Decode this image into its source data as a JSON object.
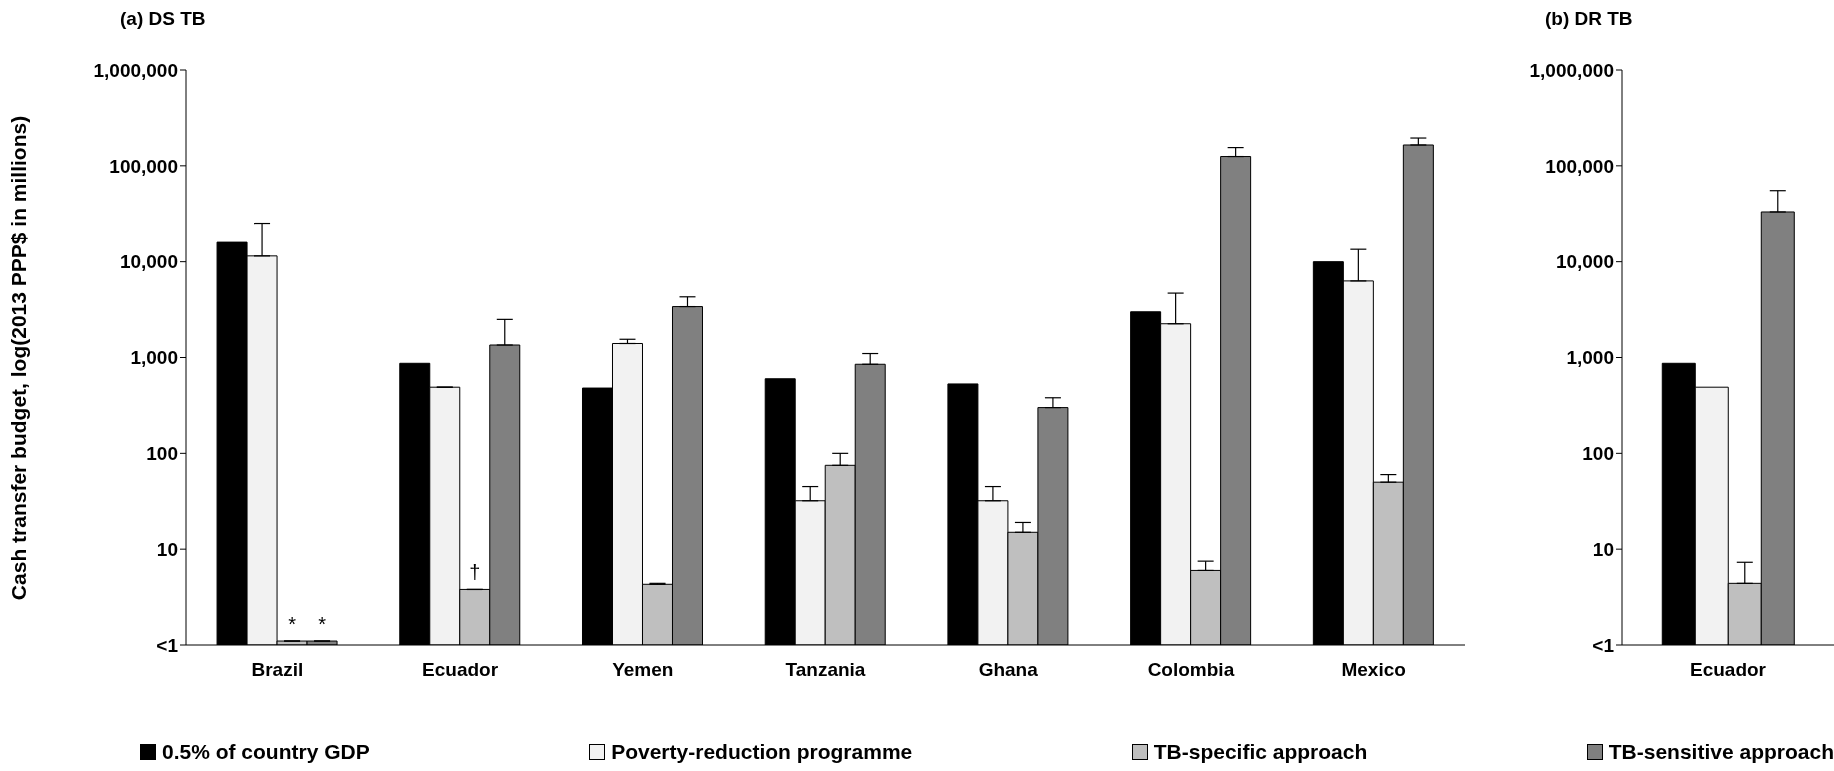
{
  "chart_data": [
    {
      "type": "bar",
      "title": "(a) DS TB",
      "ylabel": "Cash transfer budget, log(2013 PPP$ in millions)",
      "categories": [
        "Brazil",
        "Ecuador",
        "Yemen",
        "Tanzania",
        "Ghana",
        "Colombia",
        "Mexico"
      ],
      "log": "y",
      "ylim": [
        1,
        1000000
      ],
      "yticks": [
        {
          "value": 1,
          "label": "<1"
        },
        {
          "value": 10,
          "label": "10"
        },
        {
          "value": 100,
          "label": "100"
        },
        {
          "value": 1000,
          "label": "1,000"
        },
        {
          "value": 10000,
          "label": "10,000"
        },
        {
          "value": 100000,
          "label": "100,000"
        },
        {
          "value": 1000000,
          "label": "1,000,000"
        }
      ],
      "grid": false,
      "legend": "bottom",
      "series": [
        {
          "name": "0.5% of country GDP",
          "color": "#000000",
          "values": [
            16000,
            870,
            480,
            600,
            530,
            3000,
            10000
          ]
        },
        {
          "name": "Poverty-reduction programme",
          "color": "#f2f2f2",
          "values": [
            11500,
            490,
            1400,
            32,
            32,
            2250,
            6300
          ],
          "errors": [
            [
              11500,
              25000
            ],
            null,
            [
              1400,
              1550
            ],
            [
              32,
              45
            ],
            [
              32,
              45
            ],
            [
              2250,
              4700
            ],
            [
              6300,
              13500
            ]
          ]
        },
        {
          "name": "TB-specific approach",
          "color": "#bfbfbf",
          "values": [
            1.1,
            3.8,
            4.3,
            75,
            15,
            6,
            50
          ],
          "errors": [
            null,
            null,
            [
              4.3,
              4.4
            ],
            [
              75,
              100
            ],
            [
              15,
              19
            ],
            [
              6,
              7.5
            ],
            [
              50,
              60
            ]
          ]
        },
        {
          "name": "TB-sensitive approach",
          "color": "#808080",
          "values": [
            1.1,
            1350,
            3400,
            850,
            300,
            125000,
            165000
          ],
          "errors": [
            null,
            [
              1350,
              2500
            ],
            [
              3400,
              4300
            ],
            [
              850,
              1100
            ],
            [
              300,
              380
            ],
            [
              125000,
              155000
            ],
            [
              165000,
              195000
            ]
          ]
        }
      ],
      "annotations": [
        {
          "text": "*",
          "x": "Brazil",
          "y": 1.1
        },
        {
          "text": "*",
          "x": "Brazil",
          "y": 1.1
        },
        {
          "text": "†",
          "x": "Ecuador",
          "y": 3.8
        }
      ]
    },
    {
      "type": "bar",
      "title": "(b) DR TB",
      "categories": [
        "Ecuador"
      ],
      "log": "y",
      "ylim": [
        1,
        1000000
      ],
      "yticks": [
        {
          "value": 1,
          "label": "<1"
        },
        {
          "value": 10,
          "label": "10"
        },
        {
          "value": 100,
          "label": "100"
        },
        {
          "value": 1000,
          "label": "1,000"
        },
        {
          "value": 10000,
          "label": "10,000"
        },
        {
          "value": 100000,
          "label": "100,000"
        },
        {
          "value": 1000000,
          "label": "1,000,000"
        }
      ],
      "grid": false,
      "series": [
        {
          "color": "#000000",
          "values": [
            870
          ]
        },
        {
          "color": "#f2f2f2",
          "values": [
            490
          ]
        },
        {
          "color": "#bfbfbf",
          "values": [
            4.4
          ],
          "errors": [
            [
              4.4,
              7.3
            ]
          ]
        },
        {
          "color": "#808080",
          "values": [
            33000
          ],
          "errors": [
            [
              33000,
              55000
            ]
          ]
        }
      ]
    }
  ]
}
